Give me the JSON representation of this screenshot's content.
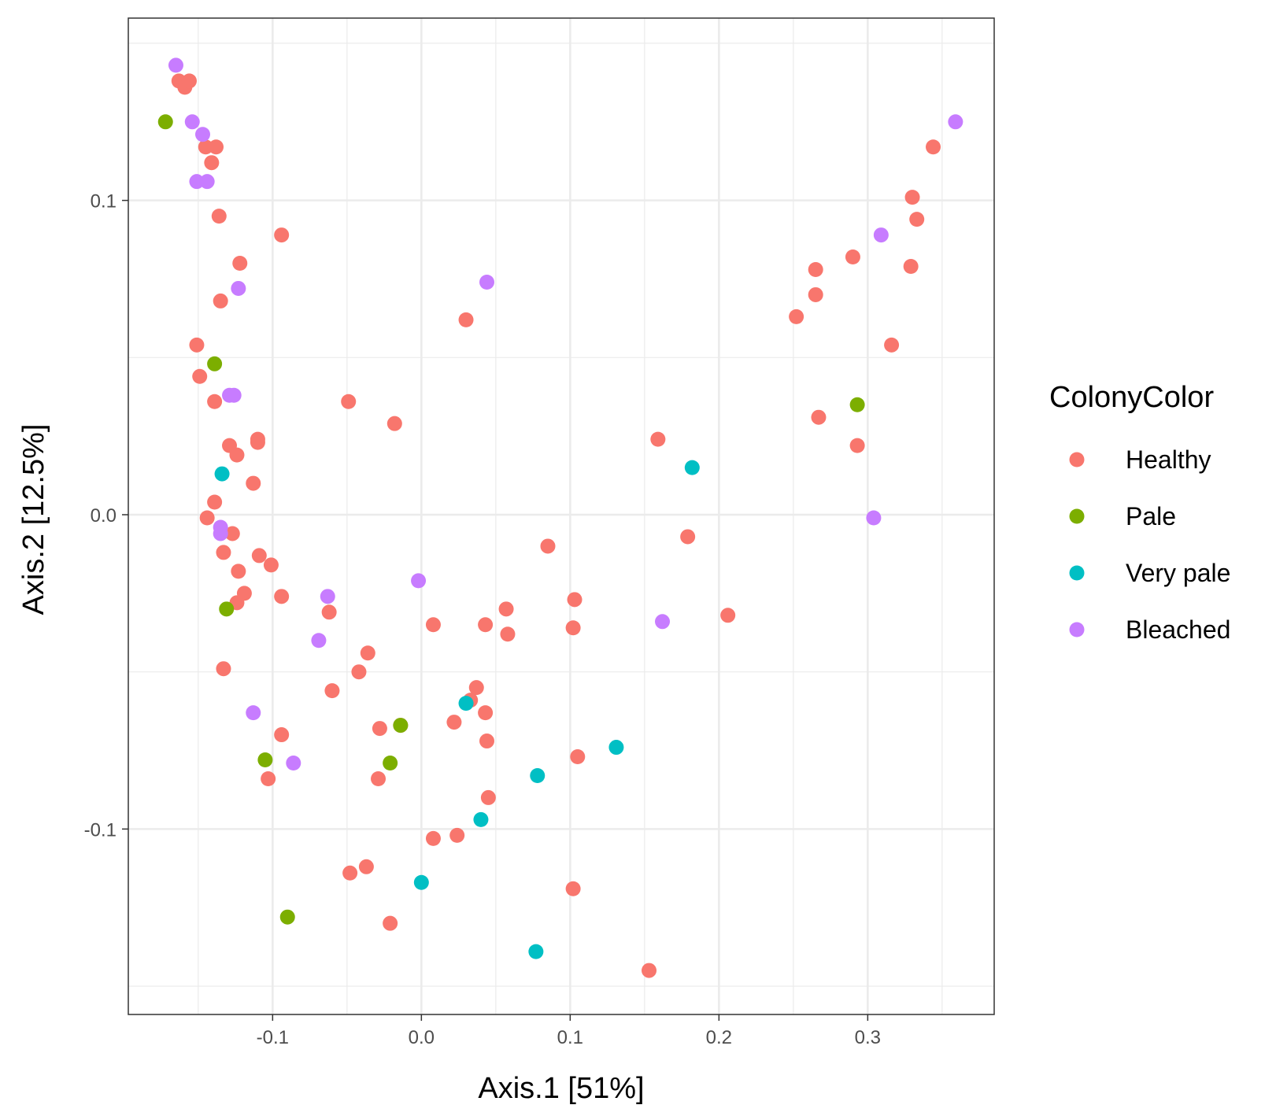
{
  "chart_data": {
    "type": "scatter",
    "xlabel": "Axis.1   [51%]",
    "ylabel": "Axis.2   [12.5%]",
    "xlim": [
      -0.197,
      0.385
    ],
    "ylim": [
      -0.159,
      0.158
    ],
    "x_ticks": [
      -0.1,
      0.0,
      0.1,
      0.2,
      0.3
    ],
    "x_tick_labels": [
      "-0.1",
      "0.0",
      "0.1",
      "0.2",
      "0.3"
    ],
    "y_ticks": [
      -0.1,
      0.0,
      0.1
    ],
    "y_tick_labels": [
      "-0.1",
      "0.0",
      "0.1"
    ],
    "grid": true,
    "legend": {
      "title": "ColonyColor",
      "position": "right"
    },
    "series": [
      {
        "name": "Healthy",
        "color": "#F8766D",
        "points": [
          [
            -0.163,
            0.138
          ],
          [
            -0.159,
            0.136
          ],
          [
            -0.156,
            0.138
          ],
          [
            -0.145,
            0.117
          ],
          [
            -0.138,
            0.117
          ],
          [
            -0.141,
            0.112
          ],
          [
            -0.136,
            0.095
          ],
          [
            -0.094,
            0.089
          ],
          [
            -0.122,
            0.08
          ],
          [
            -0.135,
            0.068
          ],
          [
            -0.151,
            0.054
          ],
          [
            -0.149,
            0.044
          ],
          [
            -0.139,
            0.036
          ],
          [
            -0.129,
            0.022
          ],
          [
            -0.11,
            0.024
          ],
          [
            -0.11,
            0.023
          ],
          [
            -0.124,
            0.019
          ],
          [
            -0.113,
            0.01
          ],
          [
            -0.139,
            0.004
          ],
          [
            -0.144,
            -0.001
          ],
          [
            -0.127,
            -0.006
          ],
          [
            -0.133,
            -0.012
          ],
          [
            -0.109,
            -0.013
          ],
          [
            -0.101,
            -0.016
          ],
          [
            -0.123,
            -0.018
          ],
          [
            -0.119,
            -0.025
          ],
          [
            -0.094,
            -0.026
          ],
          [
            -0.124,
            -0.028
          ],
          [
            -0.062,
            -0.031
          ],
          [
            -0.133,
            -0.049
          ],
          [
            -0.06,
            -0.056
          ],
          [
            -0.094,
            -0.07
          ],
          [
            -0.103,
            -0.084
          ],
          [
            -0.049,
            0.036
          ],
          [
            -0.018,
            0.029
          ],
          [
            0.03,
            0.062
          ],
          [
            -0.036,
            -0.044
          ],
          [
            -0.042,
            -0.05
          ],
          [
            -0.028,
            -0.068
          ],
          [
            -0.014,
            -0.067
          ],
          [
            -0.029,
            -0.084
          ],
          [
            -0.048,
            -0.114
          ],
          [
            -0.037,
            -0.112
          ],
          [
            -0.021,
            -0.13
          ],
          [
            0.008,
            -0.035
          ],
          [
            0.008,
            -0.103
          ],
          [
            0.024,
            -0.102
          ],
          [
            0.022,
            -0.066
          ],
          [
            0.033,
            -0.059
          ],
          [
            0.037,
            -0.055
          ],
          [
            0.043,
            -0.035
          ],
          [
            0.043,
            -0.063
          ],
          [
            0.044,
            -0.072
          ],
          [
            0.045,
            -0.09
          ],
          [
            0.057,
            -0.03
          ],
          [
            0.058,
            -0.038
          ],
          [
            0.085,
            -0.01
          ],
          [
            0.103,
            -0.027
          ],
          [
            0.102,
            -0.036
          ],
          [
            0.105,
            -0.077
          ],
          [
            0.102,
            -0.119
          ],
          [
            0.153,
            -0.145
          ],
          [
            0.159,
            0.024
          ],
          [
            0.179,
            -0.007
          ],
          [
            0.206,
            -0.032
          ],
          [
            0.252,
            0.063
          ],
          [
            0.265,
            0.078
          ],
          [
            0.265,
            0.07
          ],
          [
            0.267,
            0.031
          ],
          [
            0.29,
            0.082
          ],
          [
            0.293,
            0.022
          ],
          [
            0.316,
            0.054
          ],
          [
            0.329,
            0.079
          ],
          [
            0.33,
            0.101
          ],
          [
            0.333,
            0.094
          ],
          [
            0.344,
            0.117
          ]
        ]
      },
      {
        "name": "Pale",
        "color": "#7CAE00",
        "points": [
          [
            -0.172,
            0.125
          ],
          [
            -0.139,
            0.048
          ],
          [
            -0.131,
            -0.03
          ],
          [
            -0.105,
            -0.078
          ],
          [
            -0.021,
            -0.079
          ],
          [
            -0.09,
            -0.128
          ],
          [
            -0.014,
            -0.067
          ],
          [
            0.293,
            0.035
          ]
        ]
      },
      {
        "name": "Very pale",
        "color": "#00BFC4",
        "points": [
          [
            -0.134,
            0.013
          ],
          [
            0.03,
            -0.06
          ],
          [
            0.04,
            -0.097
          ],
          [
            0.0,
            -0.117
          ],
          [
            0.078,
            -0.083
          ],
          [
            0.077,
            -0.139
          ],
          [
            0.131,
            -0.074
          ],
          [
            0.182,
            0.015
          ]
        ]
      },
      {
        "name": "Bleached",
        "color": "#C77CFF",
        "points": [
          [
            -0.165,
            0.143
          ],
          [
            -0.154,
            0.125
          ],
          [
            -0.147,
            0.121
          ],
          [
            -0.151,
            0.106
          ],
          [
            -0.144,
            0.106
          ],
          [
            -0.123,
            0.072
          ],
          [
            -0.129,
            0.038
          ],
          [
            -0.126,
            0.038
          ],
          [
            -0.135,
            -0.004
          ],
          [
            -0.135,
            -0.006
          ],
          [
            -0.063,
            -0.026
          ],
          [
            -0.069,
            -0.04
          ],
          [
            -0.113,
            -0.063
          ],
          [
            -0.086,
            -0.079
          ],
          [
            -0.002,
            -0.021
          ],
          [
            0.044,
            0.074
          ],
          [
            0.162,
            -0.034
          ],
          [
            0.304,
            -0.001
          ],
          [
            0.309,
            0.089
          ],
          [
            0.359,
            0.125
          ]
        ]
      }
    ]
  }
}
